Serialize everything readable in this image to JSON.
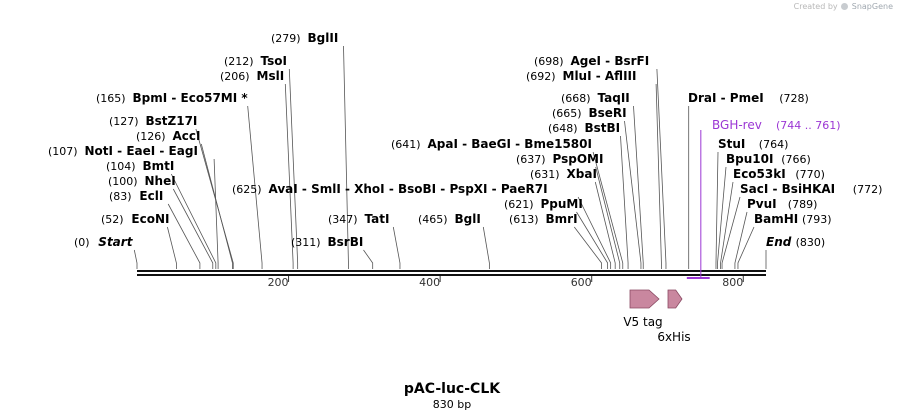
{
  "header": {
    "credit_prefix": "Created by",
    "credit_brand": "SnapGene"
  },
  "plasmid": {
    "name": "pAC-luc-CLK",
    "length_label": "830 bp",
    "length_bp": 830
  },
  "ruler": {
    "ticks": [
      200,
      400,
      600,
      800
    ]
  },
  "colors": {
    "primer": "#9b36d4",
    "feature_fill": "#c9879f",
    "feature_stroke": "#8a4a63",
    "text": "#000000",
    "line": "#444444"
  },
  "sites": [
    {
      "name": "Start",
      "pos": 0,
      "pos_label": "(0)",
      "italic": true
    },
    {
      "name": "EcoNI",
      "pos": 52,
      "pos_label": "(52)"
    },
    {
      "name": "EclI",
      "pos": 83,
      "pos_label": "(83)"
    },
    {
      "name": "NheI",
      "pos": 100,
      "pos_label": "(100)"
    },
    {
      "name": "BmtI",
      "pos": 104,
      "pos_label": "(104)"
    },
    {
      "name": "NotI - EaeI - EagI",
      "pos": 107,
      "pos_label": "(107)"
    },
    {
      "name": "AccI",
      "pos": 126,
      "pos_label": "(126)"
    },
    {
      "name": "BstZ17I",
      "pos": 127,
      "pos_label": "(127)"
    },
    {
      "name": "BpmI - Eco57MI *",
      "pos": 165,
      "pos_label": "(165)"
    },
    {
      "name": "MslI",
      "pos": 206,
      "pos_label": "(206)"
    },
    {
      "name": "TsoI",
      "pos": 212,
      "pos_label": "(212)"
    },
    {
      "name": "BglII",
      "pos": 279,
      "pos_label": "(279)"
    },
    {
      "name": "BsrBI",
      "pos": 311,
      "pos_label": "(311)"
    },
    {
      "name": "TatI",
      "pos": 347,
      "pos_label": "(347)"
    },
    {
      "name": "BglI",
      "pos": 465,
      "pos_label": "(465)"
    },
    {
      "name": "BmrI",
      "pos": 613,
      "pos_label": "(613)"
    },
    {
      "name": "PpuMI",
      "pos": 621,
      "pos_label": "(621)"
    },
    {
      "name": "AvaI - SmlI - XhoI - BsoBI - PspXI - PaeR7I",
      "pos": 625,
      "pos_label": "(625)"
    },
    {
      "name": "XbaI",
      "pos": 631,
      "pos_label": "(631)"
    },
    {
      "name": "PspOMI",
      "pos": 637,
      "pos_label": "(637)"
    },
    {
      "name": "ApaI - BaeGI - Bme1580I",
      "pos": 641,
      "pos_label": "(641)"
    },
    {
      "name": "BstBI",
      "pos": 648,
      "pos_label": "(648)"
    },
    {
      "name": "BseRI",
      "pos": 665,
      "pos_label": "(665)"
    },
    {
      "name": "TaqII",
      "pos": 668,
      "pos_label": "(668)"
    },
    {
      "name": "MluI - AflIII",
      "pos": 692,
      "pos_label": "(692)"
    },
    {
      "name": "AgeI - BsrFI",
      "pos": 698,
      "pos_label": "(698)"
    },
    {
      "name": "DraI - PmeI",
      "pos": 728,
      "pos_label": "(728)"
    },
    {
      "name": "StuI",
      "pos": 764,
      "pos_label": "(764)"
    },
    {
      "name": "Bpu10I",
      "pos": 766,
      "pos_label": "(766)"
    },
    {
      "name": "Eco53kI",
      "pos": 770,
      "pos_label": "(770)"
    },
    {
      "name": "SacI - BsiHKAI",
      "pos": 772,
      "pos_label": "(772)"
    },
    {
      "name": "PvuI",
      "pos": 789,
      "pos_label": "(789)"
    },
    {
      "name": "BamHI",
      "pos": 793,
      "pos_label": "(793)"
    },
    {
      "name": "End",
      "pos": 830,
      "pos_label": "(830)",
      "italic": true
    }
  ],
  "primer": {
    "name": "BGH-rev",
    "range_label": "(744 .. 761)",
    "start": 744,
    "end": 761
  },
  "features": [
    {
      "name": "V5 tag",
      "start": 658,
      "end": 700
    },
    {
      "name": "6xHis",
      "start": 700,
      "end": 718
    }
  ]
}
